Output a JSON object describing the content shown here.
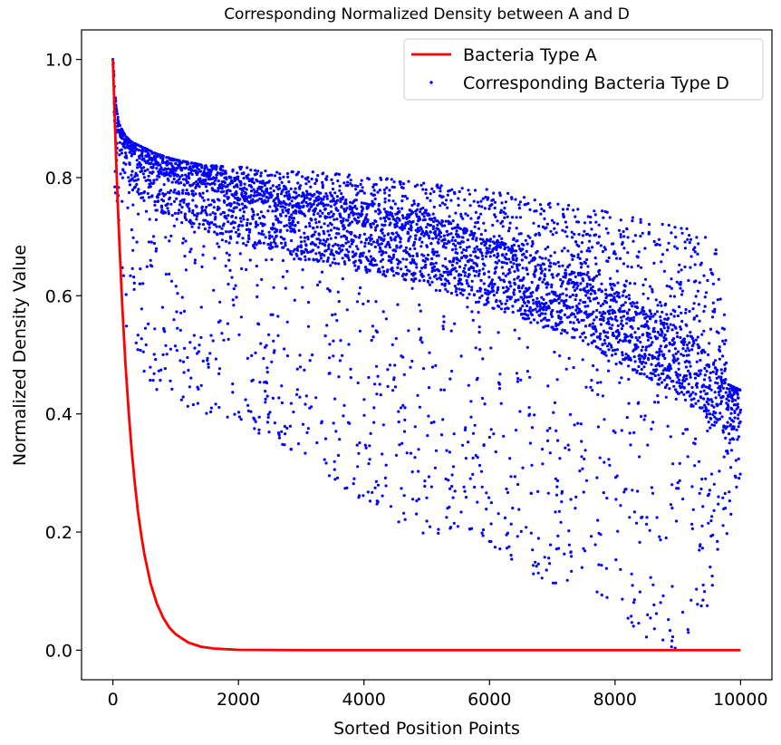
{
  "chart_data": {
    "type": "scatter",
    "title": "Corresponding Normalized Density between A and D",
    "xlabel": "Sorted Position Points",
    "ylabel": "Normalized Density Value",
    "xlim": [
      -500,
      10500
    ],
    "ylim": [
      -0.05,
      1.05
    ],
    "xticks": [
      0,
      2000,
      4000,
      6000,
      8000,
      10000
    ],
    "xtick_labels": [
      "0",
      "2000",
      "4000",
      "6000",
      "8000",
      "10000"
    ],
    "yticks": [
      0.0,
      0.2,
      0.4,
      0.6,
      0.8,
      1.0
    ],
    "ytick_labels": [
      "0.0",
      "0.2",
      "0.4",
      "0.6",
      "0.8",
      "1.0"
    ],
    "grid": false,
    "legend": {
      "placement": "top-right"
    },
    "series": [
      {
        "name": "Bacteria Type A",
        "kind": "line",
        "color": "#ff0000",
        "x": [
          0,
          10,
          25,
          50,
          75,
          100,
          150,
          200,
          250,
          300,
          350,
          400,
          450,
          500,
          600,
          700,
          800,
          900,
          1000,
          1200,
          1400,
          1600,
          2000,
          3000,
          4000,
          6000,
          8000,
          10000
        ],
        "y": [
          1.0,
          0.965,
          0.913,
          0.834,
          0.762,
          0.696,
          0.581,
          0.484,
          0.404,
          0.337,
          0.281,
          0.234,
          0.196,
          0.163,
          0.113,
          0.079,
          0.055,
          0.038,
          0.027,
          0.013,
          0.006,
          0.003,
          0.0007,
          0.0,
          0.0,
          0.0,
          0.0,
          0.0
        ]
      },
      {
        "name": "Corresponding Bacteria Type D",
        "kind": "scatter",
        "color": "#0000ff",
        "point_count": 10000,
        "x": [
          0,
          10,
          30,
          50,
          100,
          200,
          300,
          500,
          700,
          1000,
          1500,
          2000,
          2500,
          3000,
          3500,
          4000,
          4500,
          5000,
          5500,
          6000,
          6500,
          7000,
          7500,
          8000,
          8500,
          9000,
          9500,
          9700,
          9800,
          10000
        ],
        "y": [
          1.0,
          0.95,
          0.91,
          0.89,
          0.87,
          0.85,
          0.84,
          0.82,
          0.8,
          0.79,
          0.77,
          0.75,
          0.73,
          0.72,
          0.71,
          0.7,
          0.69,
          0.68,
          0.66,
          0.64,
          0.62,
          0.6,
          0.58,
          0.55,
          0.52,
          0.49,
          0.45,
          0.42,
          0.41,
          0.42
        ],
        "upper_envelope_y": [
          1.0,
          0.99,
          0.95,
          0.92,
          0.89,
          0.87,
          0.86,
          0.85,
          0.84,
          0.83,
          0.82,
          0.82,
          0.81,
          0.81,
          0.81,
          0.8,
          0.8,
          0.79,
          0.79,
          0.78,
          0.77,
          0.76,
          0.75,
          0.74,
          0.73,
          0.72,
          0.7,
          0.69,
          0.45,
          0.44
        ],
        "lower_envelope_y": [
          1.0,
          0.85,
          0.77,
          0.72,
          0.62,
          0.55,
          0.52,
          0.47,
          0.44,
          0.42,
          0.4,
          0.38,
          0.36,
          0.33,
          0.28,
          0.25,
          0.22,
          0.19,
          0.2,
          0.18,
          0.14,
          0.11,
          0.1,
          0.07,
          0.02,
          0.0,
          0.08,
          0.19,
          0.19,
          0.3
        ]
      }
    ]
  }
}
